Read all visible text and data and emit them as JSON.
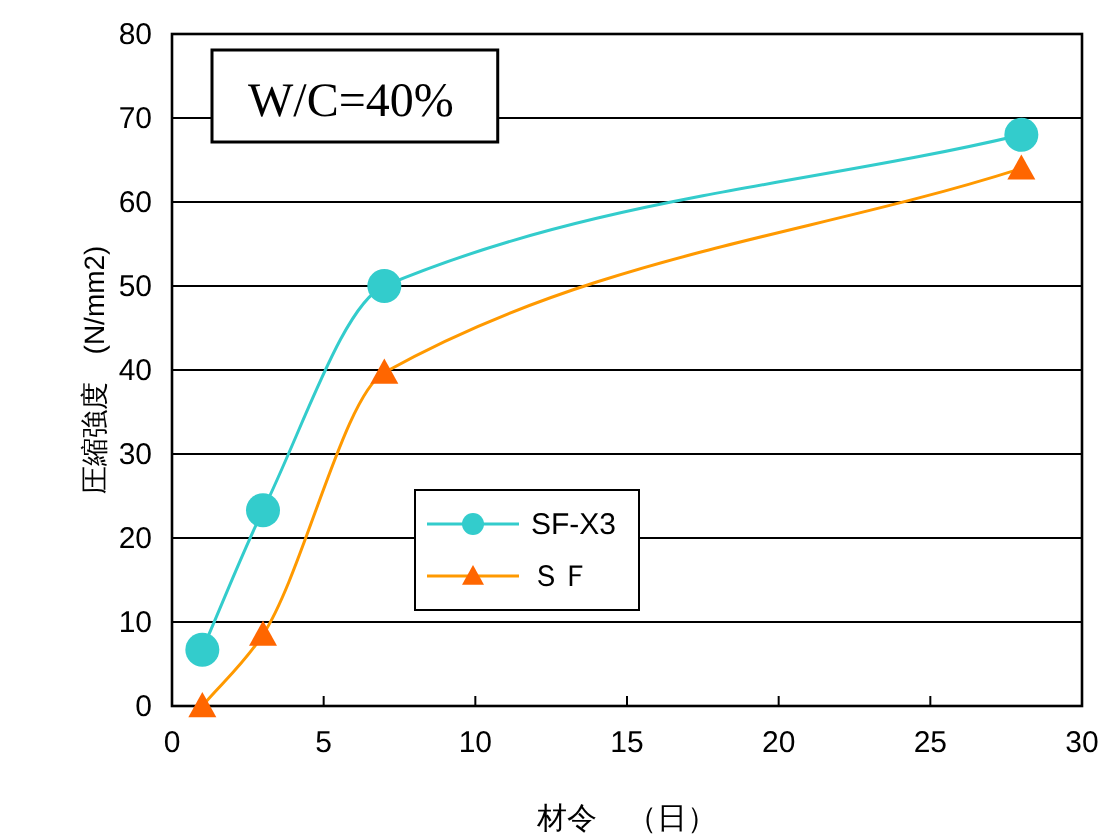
{
  "chart_data": {
    "type": "line",
    "xlabel": "材令　（日）",
    "ylabel": "圧縮強度　(N/mm2)",
    "annotations": [
      "W/C=40%"
    ],
    "xlim": [
      0,
      30
    ],
    "xticks": [
      0,
      5,
      10,
      15,
      20,
      25,
      30
    ],
    "ylim": [
      0,
      80
    ],
    "yticks": [
      0,
      10,
      20,
      30,
      40,
      50,
      60,
      70,
      80
    ],
    "grid": "y",
    "legend": "center",
    "x": [
      1,
      3,
      7,
      28
    ],
    "series": [
      {
        "name": "SF-X3",
        "color": "#33cccc",
        "marker": "circle",
        "values": [
          6.7,
          23.3,
          50,
          68
        ]
      },
      {
        "name": "ＳＦ",
        "color": "#ff9900",
        "marker": "triangle",
        "values": [
          0,
          8.5,
          39.7,
          64
        ]
      }
    ]
  }
}
